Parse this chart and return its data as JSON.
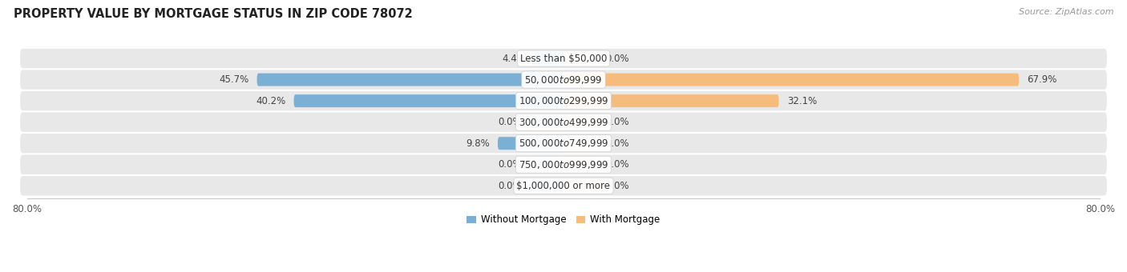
{
  "title": "PROPERTY VALUE BY MORTGAGE STATUS IN ZIP CODE 78072",
  "source": "Source: ZipAtlas.com",
  "categories": [
    "Less than $50,000",
    "$50,000 to $99,999",
    "$100,000 to $299,999",
    "$300,000 to $499,999",
    "$500,000 to $749,999",
    "$750,000 to $999,999",
    "$1,000,000 or more"
  ],
  "without_mortgage": [
    4.4,
    45.7,
    40.2,
    0.0,
    9.8,
    0.0,
    0.0
  ],
  "with_mortgage": [
    0.0,
    67.9,
    32.1,
    0.0,
    0.0,
    0.0,
    0.0
  ],
  "color_without": "#7bafd4",
  "color_with": "#f5bc7e",
  "axis_limit": 80.0,
  "bar_row_bg": "#e8e8e8",
  "title_fontsize": 10.5,
  "label_fontsize": 8.5,
  "value_fontsize": 8.5,
  "tick_fontsize": 8.5,
  "source_fontsize": 8,
  "legend_fontsize": 8.5,
  "stub_size": 5.0
}
